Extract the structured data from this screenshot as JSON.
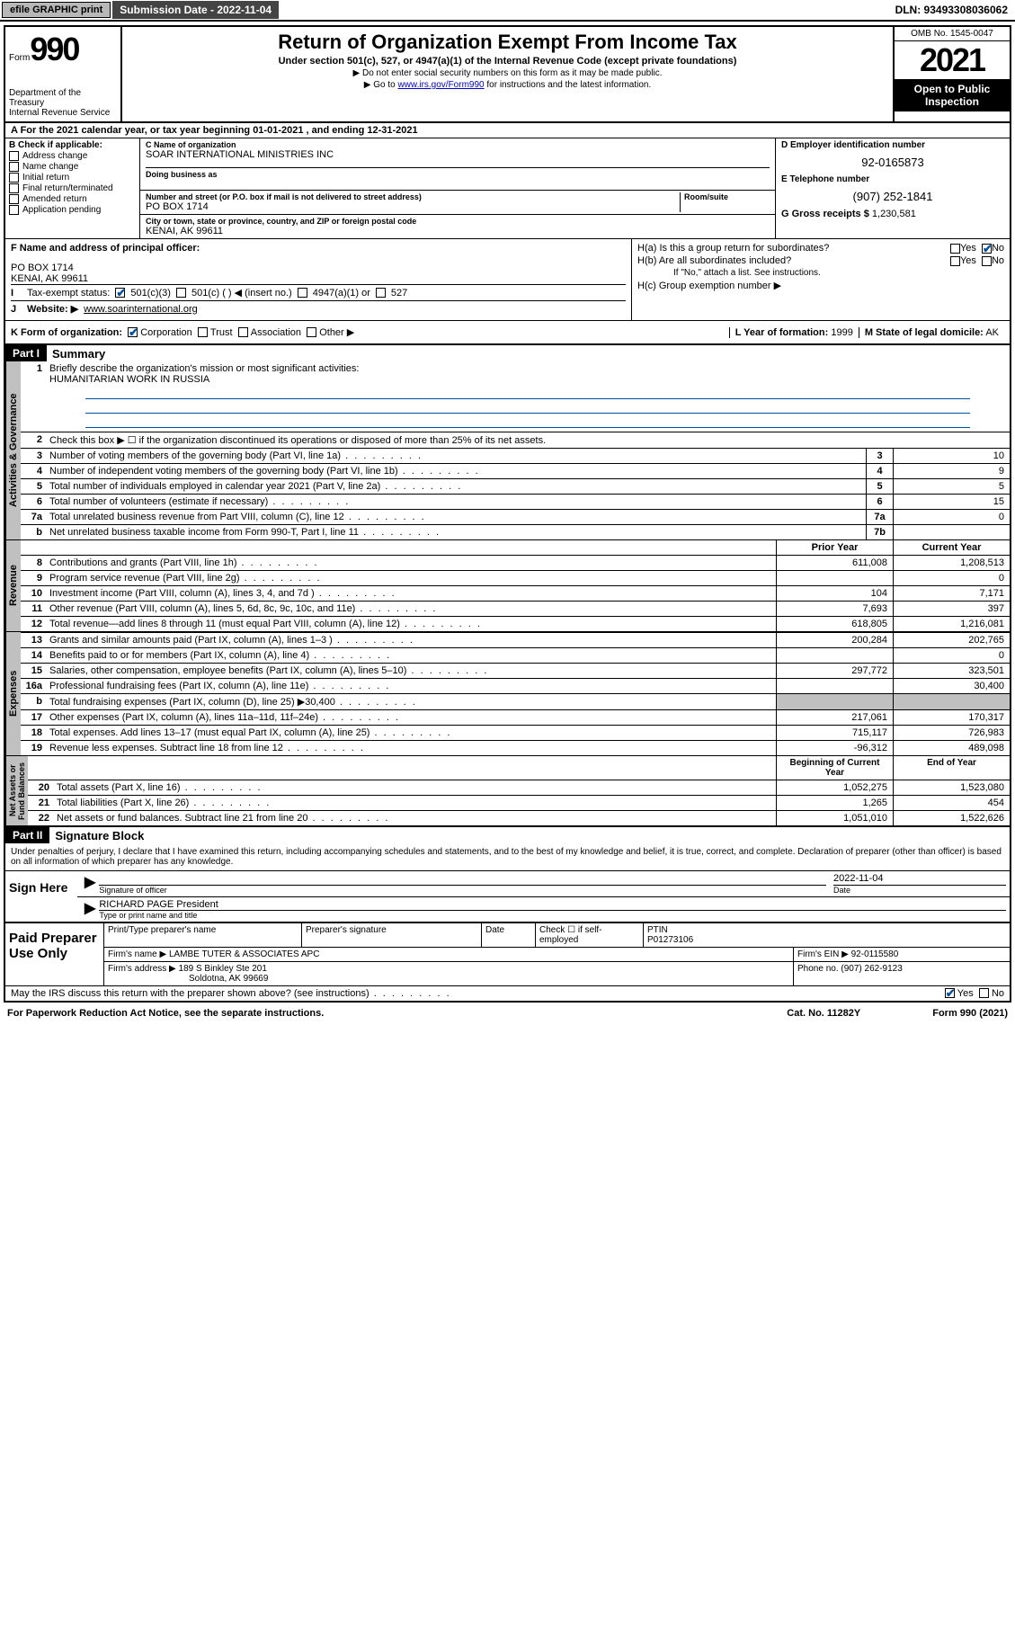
{
  "topbar": {
    "efile": "efile GRAPHIC print",
    "submission_label": "Submission Date - 2022-11-04",
    "dln": "DLN: 93493308036062"
  },
  "header": {
    "form_prefix": "Form",
    "form_number": "990",
    "dept": "Department of the Treasury\nInternal Revenue Service",
    "title": "Return of Organization Exempt From Income Tax",
    "subtitle": "Under section 501(c), 527, or 4947(a)(1) of the Internal Revenue Code (except private foundations)",
    "note1": "▶ Do not enter social security numbers on this form as it may be made public.",
    "note2_pre": "▶ Go to ",
    "note2_link": "www.irs.gov/Form990",
    "note2_post": " for instructions and the latest information.",
    "omb": "OMB No. 1545-0047",
    "year": "2021",
    "open_public": "Open to Public Inspection"
  },
  "row_a": "A For the 2021 calendar year, or tax year beginning 01-01-2021   , and ending 12-31-2021",
  "section_b": {
    "label": "B Check if applicable:",
    "items": [
      "Address change",
      "Name change",
      "Initial return",
      "Final return/terminated",
      "Amended return",
      "Application pending"
    ]
  },
  "section_c": {
    "name_label": "C Name of organization",
    "name": "SOAR INTERNATIONAL MINISTRIES INC",
    "dba_label": "Doing business as",
    "addr_label": "Number and street (or P.O. box if mail is not delivered to street address)",
    "room_label": "Room/suite",
    "addr": "PO BOX 1714",
    "city_label": "City or town, state or province, country, and ZIP or foreign postal code",
    "city": "KENAI, AK  99611"
  },
  "section_d": {
    "label": "D Employer identification number",
    "value": "92-0165873",
    "e_label": "E Telephone number",
    "e_value": "(907) 252-1841",
    "g_label": "G Gross receipts $",
    "g_value": "1,230,581"
  },
  "section_f": {
    "label": "F Name and address of principal officer:",
    "line1": "PO BOX 1714",
    "line2": "KENAI, AK  99611"
  },
  "section_h": {
    "ha": "H(a)  Is this a group return for subordinates?",
    "hb": "H(b)  Are all subordinates included?",
    "hb_note": "If \"No,\" attach a list. See instructions.",
    "hc": "H(c)  Group exemption number ▶"
  },
  "row_i": {
    "label": "Tax-exempt status:",
    "opts": [
      "501(c)(3)",
      "501(c) (  ) ◀ (insert no.)",
      "4947(a)(1) or",
      "527"
    ]
  },
  "row_j": {
    "label": "Website: ▶",
    "value": "www.soarinternational.org"
  },
  "row_k": {
    "label": "K Form of organization:",
    "opts": [
      "Corporation",
      "Trust",
      "Association",
      "Other ▶"
    ],
    "l_label": "L Year of formation:",
    "l_value": "1999",
    "m_label": "M State of legal domicile:",
    "m_value": "AK"
  },
  "part1": {
    "header": "Part I",
    "title": "Summary",
    "line1_label": "Briefly describe the organization's mission or most significant activities:",
    "line1_value": "HUMANITARIAN WORK IN RUSSIA",
    "line2": "Check this box ▶ ☐  if the organization discontinued its operations or disposed of more than 25% of its net assets.",
    "lines_gov": [
      {
        "num": "3",
        "text": "Number of voting members of the governing body (Part VI, line 1a)",
        "box": "3",
        "val": "10"
      },
      {
        "num": "4",
        "text": "Number of independent voting members of the governing body (Part VI, line 1b)",
        "box": "4",
        "val": "9"
      },
      {
        "num": "5",
        "text": "Total number of individuals employed in calendar year 2021 (Part V, line 2a)",
        "box": "5",
        "val": "5"
      },
      {
        "num": "6",
        "text": "Total number of volunteers (estimate if necessary)",
        "box": "6",
        "val": "15"
      },
      {
        "num": "7a",
        "text": "Total unrelated business revenue from Part VIII, column (C), line 12",
        "box": "7a",
        "val": "0"
      },
      {
        "num": "b",
        "text": "Net unrelated business taxable income from Form 990-T, Part I, line 11",
        "box": "7b",
        "val": ""
      }
    ],
    "col_prior": "Prior Year",
    "col_current": "Current Year",
    "lines_rev": [
      {
        "num": "8",
        "text": "Contributions and grants (Part VIII, line 1h)",
        "prior": "611,008",
        "curr": "1,208,513"
      },
      {
        "num": "9",
        "text": "Program service revenue (Part VIII, line 2g)",
        "prior": "",
        "curr": "0"
      },
      {
        "num": "10",
        "text": "Investment income (Part VIII, column (A), lines 3, 4, and 7d )",
        "prior": "104",
        "curr": "7,171"
      },
      {
        "num": "11",
        "text": "Other revenue (Part VIII, column (A), lines 5, 6d, 8c, 9c, 10c, and 11e)",
        "prior": "7,693",
        "curr": "397"
      },
      {
        "num": "12",
        "text": "Total revenue—add lines 8 through 11 (must equal Part VIII, column (A), line 12)",
        "prior": "618,805",
        "curr": "1,216,081"
      }
    ],
    "lines_exp": [
      {
        "num": "13",
        "text": "Grants and similar amounts paid (Part IX, column (A), lines 1–3 )",
        "prior": "200,284",
        "curr": "202,765"
      },
      {
        "num": "14",
        "text": "Benefits paid to or for members (Part IX, column (A), line 4)",
        "prior": "",
        "curr": "0"
      },
      {
        "num": "15",
        "text": "Salaries, other compensation, employee benefits (Part IX, column (A), lines 5–10)",
        "prior": "297,772",
        "curr": "323,501"
      },
      {
        "num": "16a",
        "text": "Professional fundraising fees (Part IX, column (A), line 11e)",
        "prior": "",
        "curr": "30,400"
      },
      {
        "num": "b",
        "text": "Total fundraising expenses (Part IX, column (D), line 25) ▶30,400",
        "prior": "shaded",
        "curr": "shaded"
      },
      {
        "num": "17",
        "text": "Other expenses (Part IX, column (A), lines 11a–11d, 11f–24e)",
        "prior": "217,061",
        "curr": "170,317"
      },
      {
        "num": "18",
        "text": "Total expenses. Add lines 13–17 (must equal Part IX, column (A), line 25)",
        "prior": "715,117",
        "curr": "726,983"
      },
      {
        "num": "19",
        "text": "Revenue less expenses. Subtract line 18 from line 12",
        "prior": "-96,312",
        "curr": "489,098"
      }
    ],
    "col_begin": "Beginning of Current Year",
    "col_end": "End of Year",
    "lines_net": [
      {
        "num": "20",
        "text": "Total assets (Part X, line 16)",
        "prior": "1,052,275",
        "curr": "1,523,080"
      },
      {
        "num": "21",
        "text": "Total liabilities (Part X, line 26)",
        "prior": "1,265",
        "curr": "454"
      },
      {
        "num": "22",
        "text": "Net assets or fund balances. Subtract line 21 from line 20",
        "prior": "1,051,010",
        "curr": "1,522,626"
      }
    ]
  },
  "part2": {
    "header": "Part II",
    "title": "Signature Block",
    "penalty": "Under penalties of perjury, I declare that I have examined this return, including accompanying schedules and statements, and to the best of my knowledge and belief, it is true, correct, and complete. Declaration of preparer (other than officer) is based on all information of which preparer has any knowledge.",
    "sign_here": "Sign Here",
    "sig_officer": "Signature of officer",
    "sig_date_val": "2022-11-04",
    "sig_date": "Date",
    "sig_name": "RICHARD PAGE President",
    "sig_name_label": "Type or print name and title",
    "paid": "Paid Preparer Use Only",
    "prep_name_label": "Print/Type preparer's name",
    "prep_sig_label": "Preparer's signature",
    "prep_date_label": "Date",
    "prep_check": "Check ☐ if self-employed",
    "ptin_label": "PTIN",
    "ptin": "P01273106",
    "firm_name_label": "Firm's name    ▶",
    "firm_name": "LAMBE TUTER & ASSOCIATES APC",
    "firm_ein_label": "Firm's EIN ▶",
    "firm_ein": "92-0115580",
    "firm_addr_label": "Firm's address ▶",
    "firm_addr1": "189 S Binkley Ste 201",
    "firm_addr2": "Soldotna, AK  99669",
    "firm_phone_label": "Phone no.",
    "firm_phone": "(907) 262-9123",
    "discuss": "May the IRS discuss this return with the preparer shown above? (see instructions)"
  },
  "footer": {
    "paperwork": "For Paperwork Reduction Act Notice, see the separate instructions.",
    "cat": "Cat. No. 11282Y",
    "form": "Form 990 (2021)"
  },
  "yes": "Yes",
  "no": "No"
}
